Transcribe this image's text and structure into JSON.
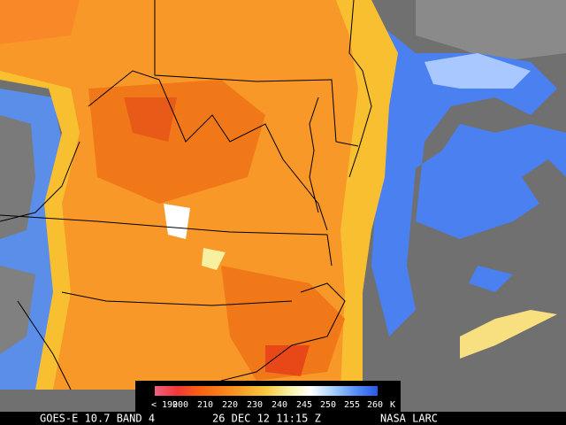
{
  "legend": {
    "labels": [
      "< 190",
      "200",
      "210",
      "220",
      "230",
      "240",
      "245",
      "250",
      "255",
      "260",
      "K"
    ]
  },
  "footer": {
    "satellite": "GOES-E 10.7 BAND 4",
    "time": "26 DEC 12 11:15 Z",
    "source": "NASA LARC"
  }
}
